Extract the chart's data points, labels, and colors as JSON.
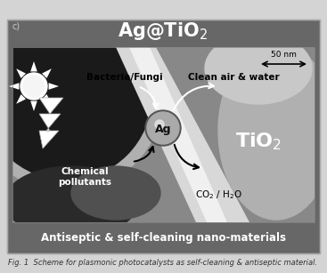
{
  "title": "Ag@TiO$_2$",
  "fig_label": "c)",
  "scale_bar_text": "50 nm",
  "label_bacteria": "Bacteria/Fungi",
  "label_clean": "Clean air & water",
  "label_ag": "Ag",
  "label_tio2": "TiO$_2$",
  "label_chemical": "Chemical\npollutants",
  "label_co2": "CO$_2$ / H$_2$O",
  "label_bottom": "Antiseptic & self-cleaning nano-materials",
  "caption": "Fig. 1  Scheme for plasmonic photocatalysts as self-cleaning & antiseptic material.",
  "outer_bg": "#676767",
  "inner_bg": "#888888",
  "title_color": "#ffffff",
  "bottom_text_color": "#ffffff",
  "caption_color": "#333333",
  "figsize": [
    3.67,
    3.07
  ],
  "dpi": 100,
  "fig_bg": "#d4d4d4"
}
